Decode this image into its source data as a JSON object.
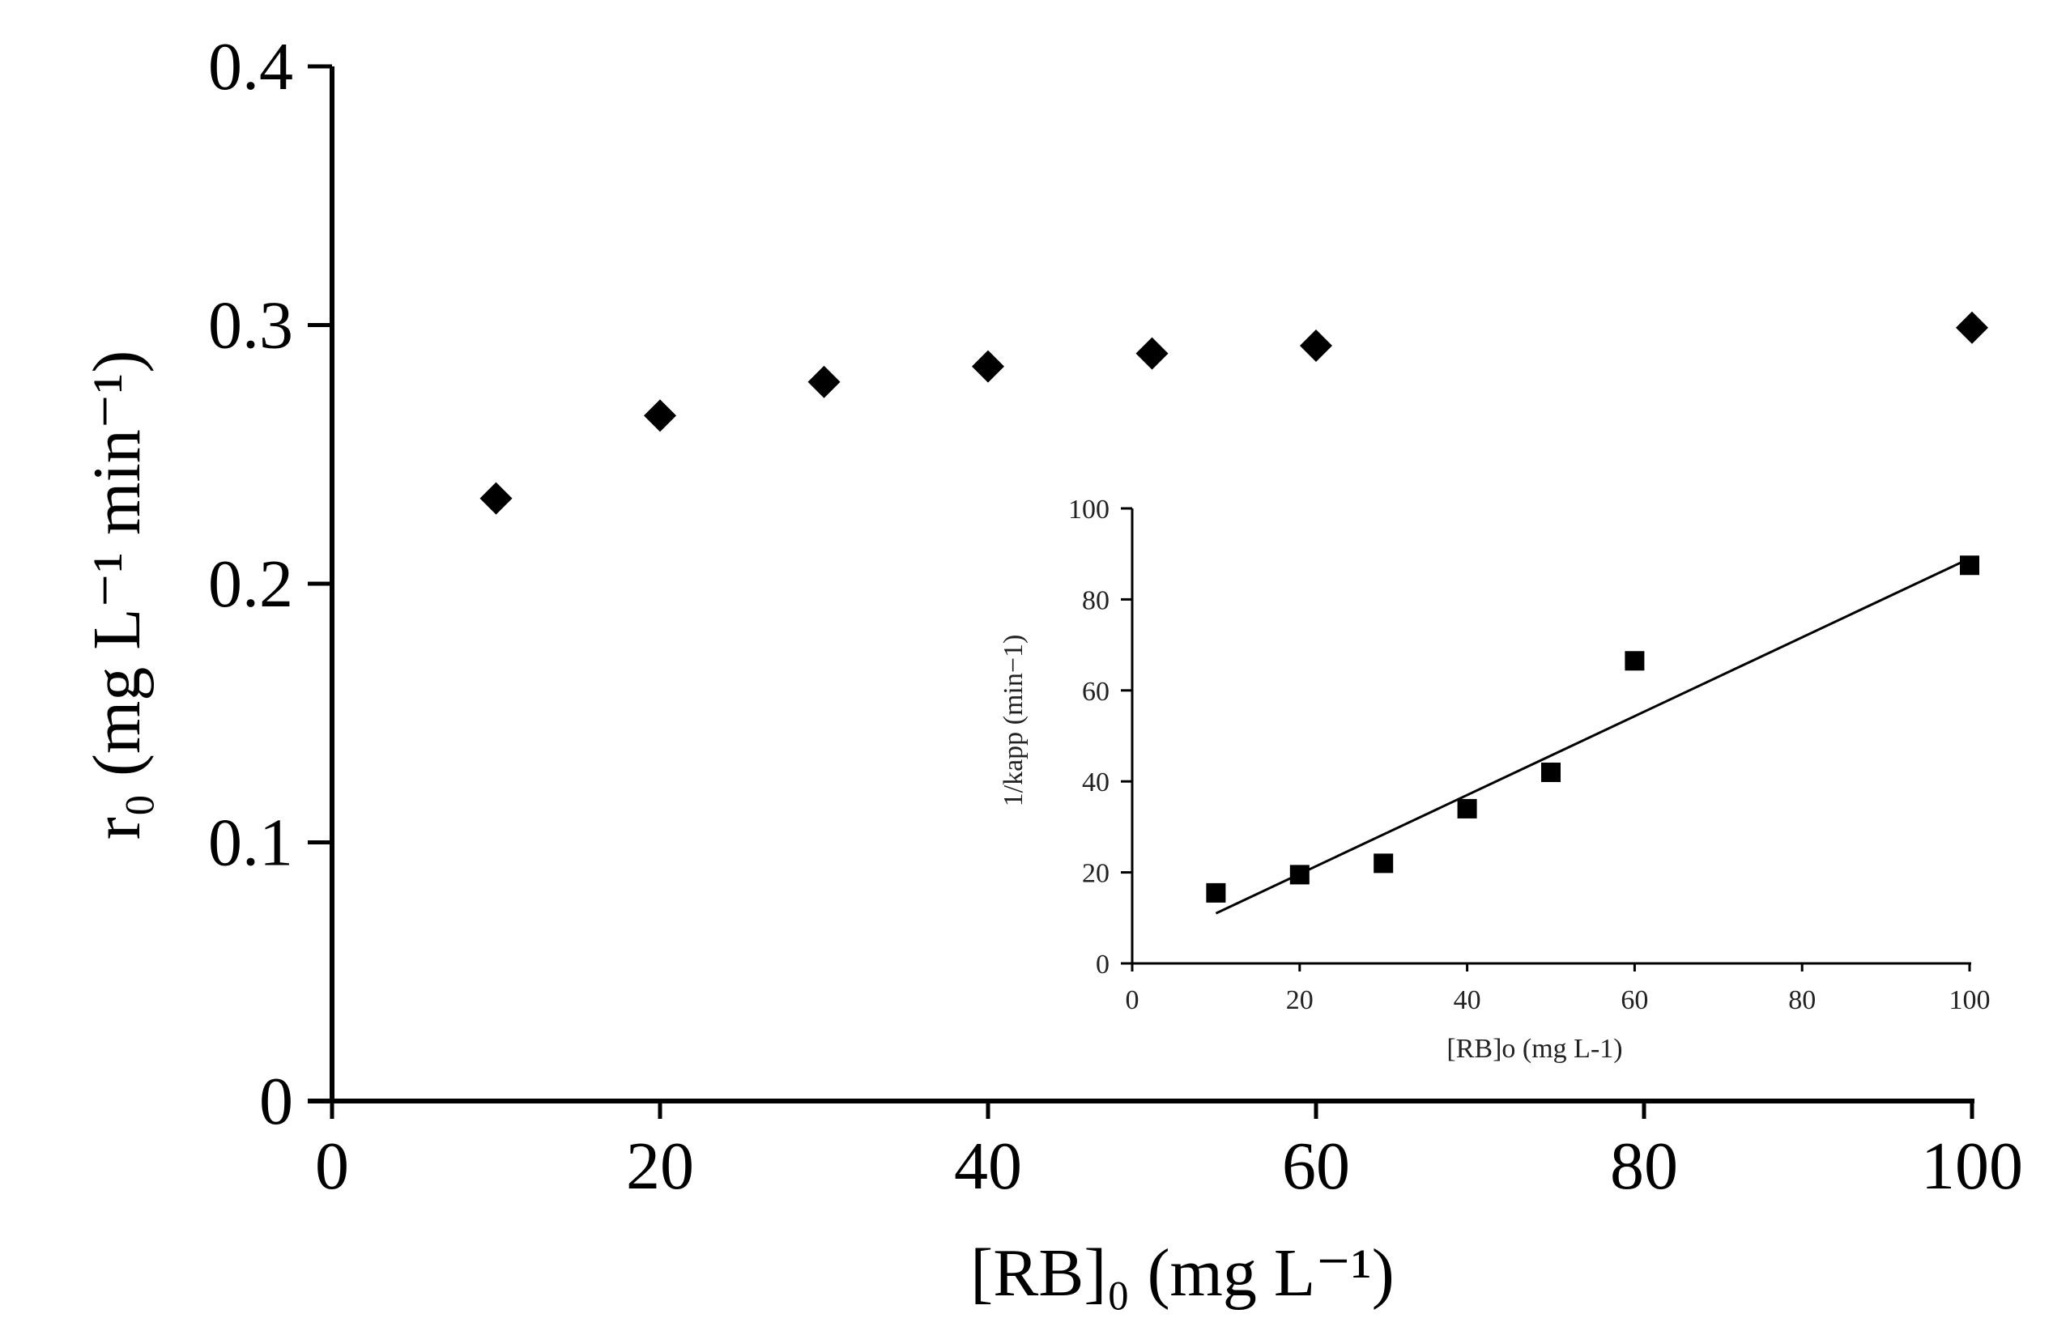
{
  "chart_data": [
    {
      "type": "scatter",
      "role": "main",
      "title": "",
      "xlabel": "[RB]₀ (mg L⁻¹)",
      "ylabel": "r₀ (mg L⁻¹ min⁻¹)",
      "xlim": [
        0,
        100
      ],
      "ylim": [
        0,
        0.4
      ],
      "xticks": [
        0,
        20,
        40,
        60,
        80,
        100
      ],
      "xtick_labels": [
        "0",
        "20",
        "40",
        "60",
        "80",
        "100"
      ],
      "yticks": [
        0,
        0.1,
        0.2,
        0.3,
        0.4
      ],
      "ytick_labels": [
        "0",
        "0.1",
        "0.2",
        "0.3",
        "0.4"
      ],
      "grid": false,
      "marker": "diamond",
      "series": [
        {
          "name": "r0",
          "x": [
            10,
            20,
            30,
            40,
            50,
            60,
            100
          ],
          "y": [
            0.233,
            0.265,
            0.278,
            0.284,
            0.289,
            0.292,
            0.299
          ]
        }
      ]
    },
    {
      "type": "scatter",
      "role": "inset",
      "title": "",
      "xlabel": "[RB]o (mg L-1)",
      "ylabel": "1/kapp (min−1)",
      "xlim": [
        0,
        100
      ],
      "ylim": [
        0,
        100
      ],
      "xticks": [
        0,
        20,
        40,
        60,
        80,
        100
      ],
      "xtick_labels": [
        "0",
        "20",
        "40",
        "60",
        "80",
        "100"
      ],
      "yticks": [
        0,
        20,
        40,
        60,
        80,
        100
      ],
      "ytick_labels": [
        "0",
        "20",
        "40",
        "60",
        "80",
        "100"
      ],
      "grid": false,
      "marker": "square",
      "series": [
        {
          "name": "1/kapp",
          "x": [
            10,
            20,
            30,
            40,
            50,
            60,
            100
          ],
          "y": [
            15.5,
            19.5,
            22,
            34,
            42,
            66.5,
            87.5
          ]
        }
      ],
      "fit_line": {
        "x": [
          10,
          100
        ],
        "y": [
          11,
          89
        ]
      }
    }
  ]
}
